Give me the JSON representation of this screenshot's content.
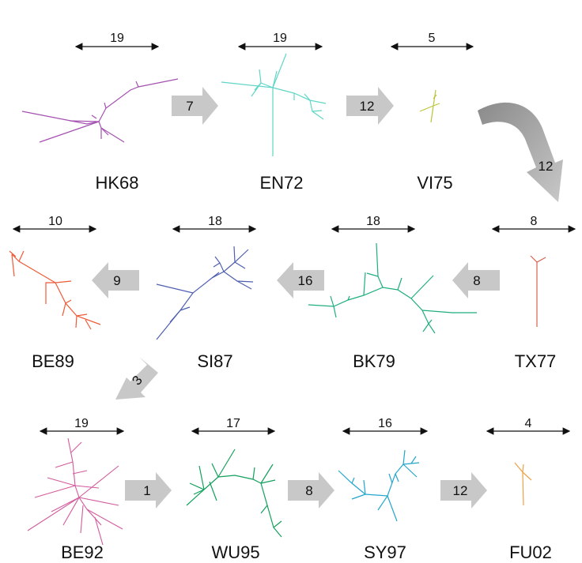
{
  "strains": [
    {
      "name": "HK68",
      "scale": "19",
      "color": "#a451b0"
    },
    {
      "name": "EN72",
      "scale": "19",
      "color": "#5fd6c6"
    },
    {
      "name": "VI75",
      "scale": "5",
      "color": "#bcc43a"
    },
    {
      "name": "TX77",
      "scale": "8",
      "color": "#d8604e"
    },
    {
      "name": "BK79",
      "scale": "18",
      "color": "#1fae80"
    },
    {
      "name": "SI87",
      "scale": "18",
      "color": "#4f5fb0"
    },
    {
      "name": "BE89",
      "scale": "10",
      "color": "#ef5a36"
    },
    {
      "name": "BE92",
      "scale": "19",
      "color": "#d25a9c"
    },
    {
      "name": "WU95",
      "scale": "17",
      "color": "#13a05c"
    },
    {
      "name": "SY97",
      "scale": "16",
      "color": "#23a6cc"
    },
    {
      "name": "FU02",
      "scale": "4",
      "color": "#f1a046"
    }
  ],
  "transitions": [
    {
      "from": "HK68",
      "to": "EN72",
      "value": "7"
    },
    {
      "from": "EN72",
      "to": "VI75",
      "value": "12"
    },
    {
      "from": "VI75",
      "to": "TX77",
      "value": "12"
    },
    {
      "from": "TX77",
      "to": "BK79",
      "value": "8"
    },
    {
      "from": "BK79",
      "to": "SI87",
      "value": "16"
    },
    {
      "from": "SI87",
      "to": "BE89",
      "value": "9"
    },
    {
      "from": "BE89",
      "to": "BE92",
      "value": "3"
    },
    {
      "from": "BE92",
      "to": "WU95",
      "value": "1"
    },
    {
      "from": "WU95",
      "to": "SY97",
      "value": "8"
    },
    {
      "from": "SY97",
      "to": "FU02",
      "value": "12"
    }
  ]
}
